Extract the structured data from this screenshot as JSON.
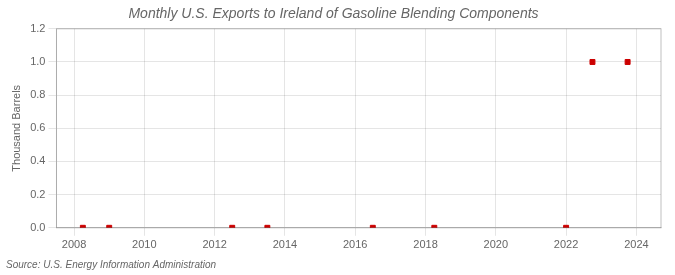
{
  "chart_data": {
    "type": "scatter",
    "title": "Monthly U.S. Exports to Ireland of Gasoline Blending Components",
    "y_label": "Thousand Barrels",
    "annotations": [
      "Source: U.S. Energy Information Administration"
    ],
    "x": [
      2008.25,
      2009.0,
      2012.5,
      2013.5,
      2016.5,
      2018.25,
      2022.0,
      2022.75,
      2023.75
    ],
    "values": [
      0.0,
      0.0,
      0.0,
      0.0,
      0.0,
      0.0,
      0.0,
      1.0,
      1.0
    ],
    "color": "#cc0000",
    "marker": "square",
    "xlim": [
      2007.5,
      2024.7
    ],
    "xticks": [
      2008,
      2010,
      2012,
      2014,
      2016,
      2018,
      2020,
      2022,
      2024
    ],
    "ylim": [
      0.0,
      1.2
    ],
    "yticks": [
      {
        "value": 0.0,
        "label": "0.0"
      },
      0.2,
      0.4,
      0.6,
      0.8,
      {
        "value": 1.0,
        "label": "1.0"
      },
      1.2
    ],
    "grid": true
  }
}
